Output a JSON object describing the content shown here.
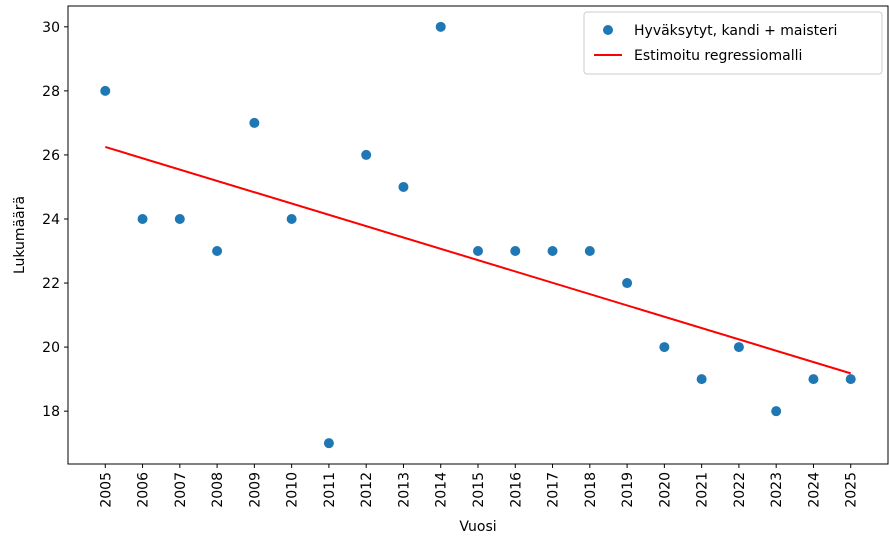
{
  "chart_data": {
    "type": "scatter",
    "x_label": "Vuosi",
    "y_label": "Lukumäärä",
    "xlim": [
      2004,
      2026
    ],
    "ylim": [
      16.35,
      30.65
    ],
    "xticks": [
      2005,
      2006,
      2007,
      2008,
      2009,
      2010,
      2011,
      2012,
      2013,
      2014,
      2015,
      2016,
      2017,
      2018,
      2019,
      2020,
      2021,
      2022,
      2023,
      2024,
      2025
    ],
    "yticks": [
      18,
      20,
      22,
      24,
      26,
      28,
      30
    ],
    "legend": "upper right",
    "series": [
      {
        "name": "Hyväksytyt, kandi + maisteri",
        "color": "#1f77b4",
        "type": "scatter",
        "x": [
          2005,
          2006,
          2007,
          2008,
          2009,
          2010,
          2011,
          2012,
          2013,
          2014,
          2015,
          2016,
          2017,
          2018,
          2019,
          2020,
          2021,
          2022,
          2023,
          2024,
          2025
        ],
        "values": [
          28,
          24,
          24,
          23,
          27,
          24,
          17,
          26,
          25,
          30,
          23,
          23,
          23,
          23,
          22,
          20,
          19,
          20,
          18,
          19,
          19
        ]
      },
      {
        "name": "Estimoitu regressiomalli",
        "color": "#ff0000",
        "type": "line",
        "x": [
          2005,
          2025
        ],
        "values": [
          26.25,
          19.18
        ]
      }
    ]
  }
}
